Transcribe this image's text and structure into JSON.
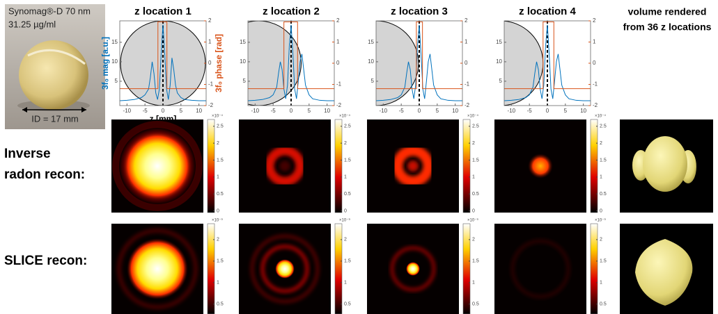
{
  "photo": {
    "lines": [
      "Synomag®-D 70 nm",
      "31.25 µg/ml"
    ],
    "dimension": "ID = 17 mm"
  },
  "volume_title": [
    "volume rendered",
    "from 36 z locations"
  ],
  "row_labels": [
    [
      "Inverse",
      "radon recon:"
    ],
    [
      "SLICE recon:"
    ]
  ],
  "colorbars": [
    {
      "exponent": "×10⁻⁴",
      "lim": [
        -0.05,
        2.7
      ],
      "ticks": [
        0,
        0.5,
        1,
        1.5,
        2,
        2.5
      ]
    },
    {
      "exponent": "×10⁻⁹",
      "lim": [
        0.27,
        2.37
      ],
      "ticks": [
        0.5,
        1,
        1.5,
        2
      ]
    }
  ],
  "chart_data": [
    {
      "type": "line",
      "title": "z location 1",
      "xlabel": "z [mm]",
      "ylabel": "3f₀ mag [a.u.]",
      "y2label": "3f₀ phase [rad]",
      "xlim": [
        -12,
        12
      ],
      "xticks": [
        -10,
        -5,
        0,
        5,
        10
      ],
      "ylim": [
        -1.25,
        20.5
      ],
      "yticks": [
        5,
        10,
        15
      ],
      "y2lim": [
        -2,
        2
      ],
      "y2ticks": [
        -2,
        -1,
        0,
        1,
        2
      ],
      "series": [
        {
          "color": "#0072bd",
          "x": [
            -12,
            -10,
            -8,
            -6,
            -5,
            -4,
            -3.5,
            -3,
            -2.5,
            -2,
            -1.5,
            -1,
            -0.5,
            0,
            0.5,
            1,
            1.5,
            2,
            2.5,
            3,
            3.5,
            4,
            5,
            6,
            8,
            10,
            12
          ],
          "values": [
            0,
            0.1,
            0.3,
            0.8,
            1.5,
            3,
            6,
            10,
            7,
            2,
            0.3,
            3,
            12,
            19.5,
            12,
            3,
            0.3,
            4,
            11,
            8,
            4,
            2,
            0.8,
            0.3,
            0.1,
            0,
            0
          ]
        },
        {
          "color": "#d95319",
          "axis": "y2",
          "x": [
            -12,
            -1.4,
            -1.4,
            1.1,
            1.1,
            12
          ],
          "values": [
            -1.2,
            -1.2,
            1.95,
            1.95,
            -1.2,
            -1.2
          ]
        }
      ]
    },
    {
      "type": "line",
      "title": "z location 2",
      "xlim": [
        -12,
        12
      ],
      "xticks": [
        -10,
        -5,
        0,
        5,
        10
      ],
      "ylim": [
        -1.25,
        20.5
      ],
      "yticks": [
        5,
        10,
        15
      ],
      "y2lim": [
        -2,
        2
      ],
      "y2ticks": [
        -2,
        -1,
        0,
        1,
        2
      ],
      "series": [
        {
          "color": "#0072bd",
          "x": [
            -12,
            -10,
            -8,
            -6,
            -5,
            -4,
            -3.5,
            -3,
            -2.5,
            -2,
            -1.5,
            -1,
            -0.5,
            0,
            0.5,
            1,
            1.5,
            2,
            2.5,
            3,
            3.5,
            4,
            5,
            6,
            8,
            10,
            12
          ],
          "values": [
            0,
            0.1,
            0.3,
            0.8,
            1.5,
            3.5,
            7,
            10,
            8,
            3,
            0.5,
            4,
            14,
            19.5,
            12,
            3,
            0.5,
            5,
            10,
            12,
            8,
            4,
            1.5,
            0.5,
            0.1,
            0,
            0
          ]
        },
        {
          "color": "#d95319",
          "axis": "y2",
          "x": [
            -12,
            -2,
            -2,
            1.8,
            1.8,
            12
          ],
          "values": [
            -1.2,
            -1.2,
            1.95,
            1.95,
            -1.2,
            -1.2
          ]
        }
      ]
    },
    {
      "type": "line",
      "title": "z location 3",
      "xlim": [
        -12,
        12
      ],
      "xticks": [
        -10,
        -5,
        0,
        5,
        10
      ],
      "ylim": [
        -1.25,
        20.5
      ],
      "yticks": [
        5,
        10,
        15
      ],
      "y2lim": [
        -2,
        2
      ],
      "y2ticks": [
        -2,
        -1,
        0,
        1,
        2
      ],
      "series": [
        {
          "color": "#0072bd",
          "x": [
            -12,
            -10,
            -8,
            -6,
            -5,
            -4,
            -3.5,
            -3,
            -2.5,
            -2,
            -1.5,
            -1,
            -0.5,
            0,
            0.5,
            1,
            1.5,
            2,
            2.5,
            3,
            3.5,
            4,
            5,
            6,
            8,
            10,
            12
          ],
          "values": [
            0,
            0.1,
            0.3,
            0.8,
            1.5,
            3.5,
            7,
            10,
            8,
            3,
            0.5,
            4,
            14,
            19.5,
            12,
            3,
            0.5,
            5,
            10,
            12,
            8,
            4,
            1.5,
            0.5,
            0.1,
            0,
            0
          ]
        },
        {
          "color": "#d95319",
          "axis": "y2",
          "x": [
            -12,
            -0.8,
            -0.8,
            0.9,
            0.9,
            12
          ],
          "values": [
            -1.2,
            -1.2,
            1.95,
            1.95,
            -1.2,
            -1.2
          ]
        }
      ]
    },
    {
      "type": "line",
      "title": "z location 4",
      "xlim": [
        -12,
        12
      ],
      "xticks": [
        -10,
        -5,
        0,
        5,
        10
      ],
      "ylim": [
        -1.25,
        20.5
      ],
      "yticks": [
        5,
        10,
        15
      ],
      "y2lim": [
        -2,
        2
      ],
      "y2ticks": [
        -2,
        -1,
        0,
        1,
        2
      ],
      "series": [
        {
          "color": "#0072bd",
          "x": [
            -12,
            -10,
            -8,
            -6,
            -5,
            -4,
            -3.5,
            -3,
            -2.5,
            -2,
            -1.5,
            -1,
            -0.5,
            0,
            0.5,
            1,
            1.5,
            2,
            2.5,
            3,
            3.5,
            4,
            5,
            6,
            8,
            10,
            12
          ],
          "values": [
            0,
            0.1,
            0.3,
            0.8,
            1.5,
            3.5,
            7,
            10,
            8,
            3,
            0.5,
            4,
            14,
            19.5,
            12,
            3,
            0.5,
            5,
            10,
            12,
            8,
            4,
            1.5,
            0.5,
            0.1,
            0,
            0
          ]
        },
        {
          "color": "#d95319",
          "axis": "y2",
          "x": [
            -12,
            -1.2,
            -1.2,
            1.8,
            1.8,
            12
          ],
          "values": [
            -1.2,
            -1.2,
            1.95,
            1.95,
            -1.2,
            -1.2
          ]
        }
      ]
    }
  ]
}
